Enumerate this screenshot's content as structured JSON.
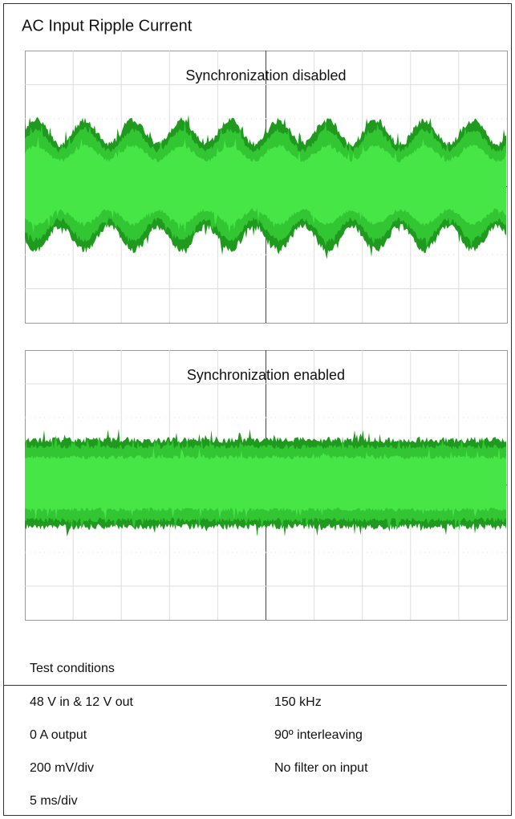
{
  "header": {
    "title": "AC Input Ripple Current"
  },
  "panels": [
    {
      "label": "Synchronization disabled"
    },
    {
      "label": "Synchronization enabled"
    }
  ],
  "conditions": {
    "title": "Test conditions",
    "rows": [
      [
        "48 V in & 12 V out",
        "150 kHz"
      ],
      [
        "0 A output",
        "90º interleaving"
      ],
      [
        "200 mV/div",
        "No filter on input"
      ],
      [
        "5 ms/div"
      ]
    ]
  }
}
